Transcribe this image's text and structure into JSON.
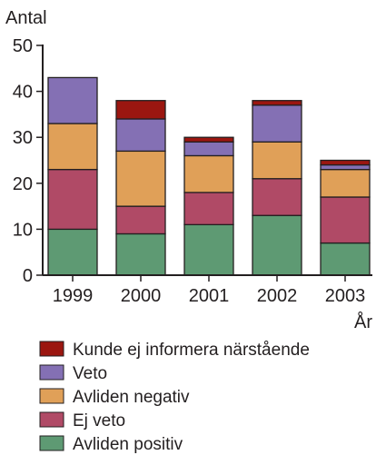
{
  "chart_data": {
    "type": "bar",
    "stacked": true,
    "ylabel": "Antal",
    "xlabel": "År",
    "ylim": [
      0,
      50
    ],
    "yticks": [
      0,
      10,
      20,
      30,
      40,
      50
    ],
    "categories": [
      "1999",
      "2000",
      "2001",
      "2002",
      "2003"
    ],
    "series": [
      {
        "name": "Avliden positiv",
        "color": "#5e9a73",
        "values": [
          10,
          9,
          11,
          13,
          7
        ]
      },
      {
        "name": "Ej veto",
        "color": "#b04a66",
        "values": [
          13,
          6,
          7,
          8,
          10
        ]
      },
      {
        "name": "Avliden negativ",
        "color": "#e0a058",
        "values": [
          10,
          12,
          8,
          8,
          6
        ]
      },
      {
        "name": "Veto",
        "color": "#8470b4",
        "values": [
          10,
          7,
          3,
          8,
          1
        ]
      },
      {
        "name": "Kunde ej informera närstående",
        "color": "#9b1610",
        "values": [
          0,
          4,
          1,
          1,
          1
        ]
      }
    ],
    "legend_position": "bottom",
    "grid": false
  }
}
